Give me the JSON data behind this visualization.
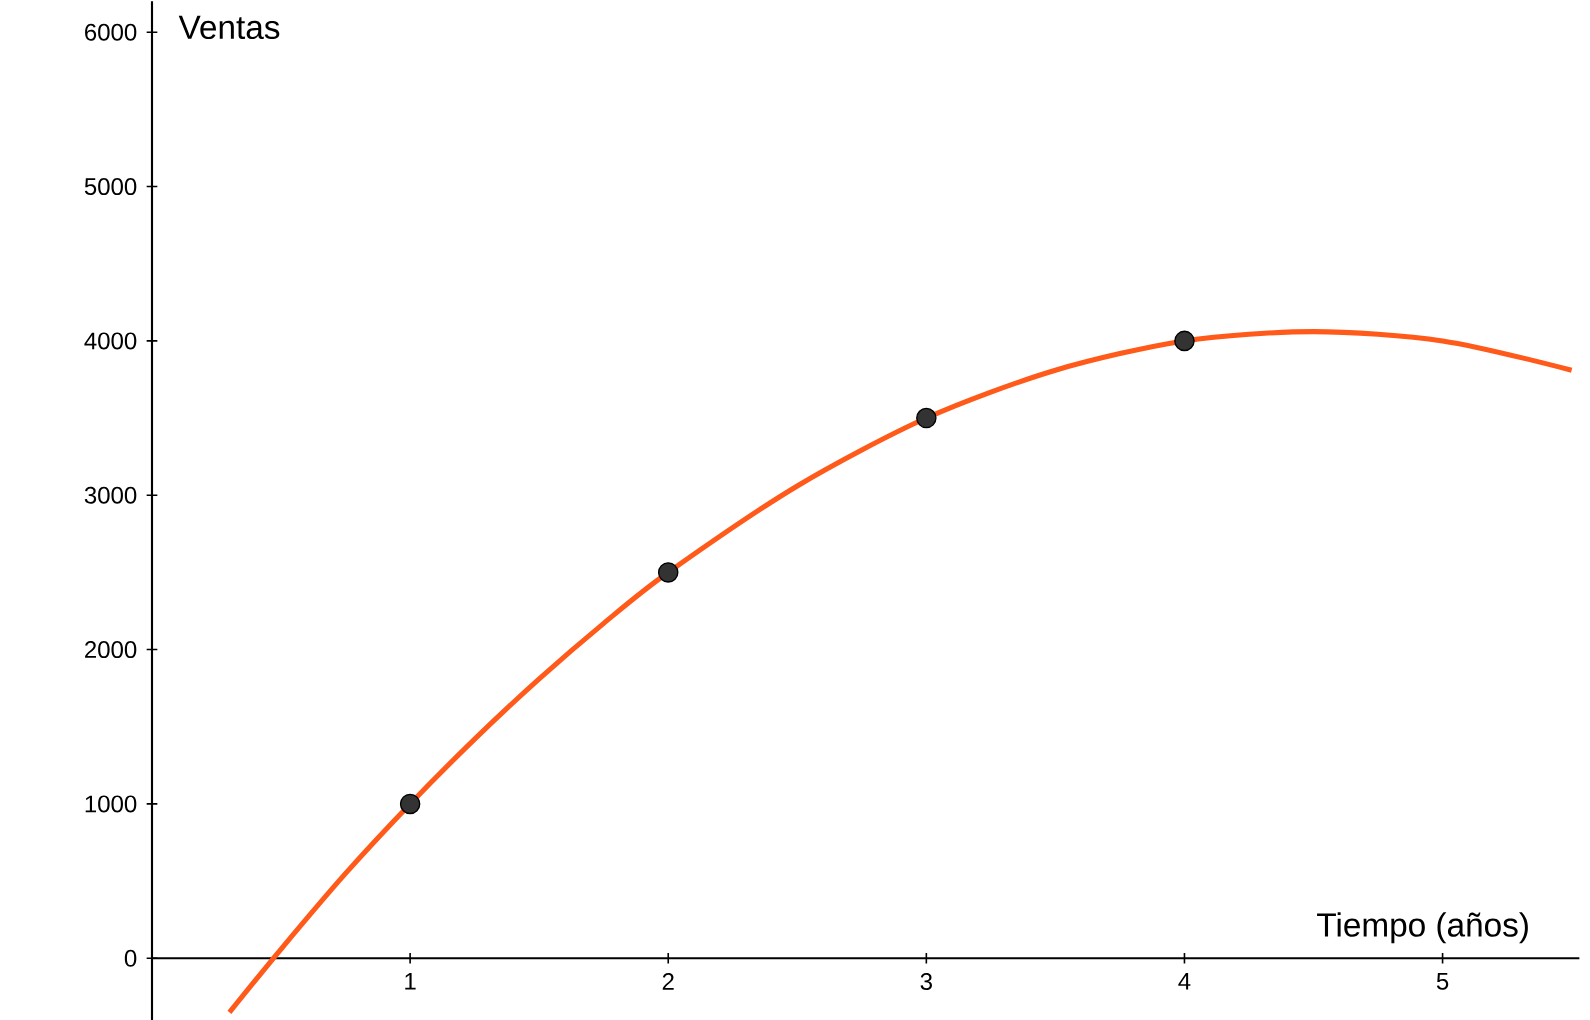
{
  "chart_data": {
    "type": "line",
    "xlabel": "Tiempo (años)",
    "ylabel": "Ventas",
    "xlim": [
      0,
      5.53
    ],
    "ylim": [
      -400,
      6200
    ],
    "xticks": [
      1,
      2,
      3,
      4,
      5
    ],
    "yticks": [
      0,
      1000,
      2000,
      3000,
      4000,
      5000,
      6000
    ],
    "series": [
      {
        "color": "#ff5a1a",
        "marker": "none",
        "x": [
          0.3,
          0.5,
          0.75,
          1,
          1.25,
          1.5,
          1.75,
          2,
          2.5,
          3,
          3.5,
          4,
          4.5,
          5,
          5.5
        ],
        "values": [
          -350,
          60,
          550,
          1000,
          1420,
          1810,
          2170,
          2500,
          3060,
          3500,
          3810,
          4000,
          4060,
          4000,
          3810
        ]
      },
      {
        "type": "scatter",
        "color": "#333333",
        "marker": "circle",
        "x": [
          1,
          2,
          3,
          4
        ],
        "values": [
          1000,
          2500,
          3500,
          4000
        ]
      }
    ]
  }
}
